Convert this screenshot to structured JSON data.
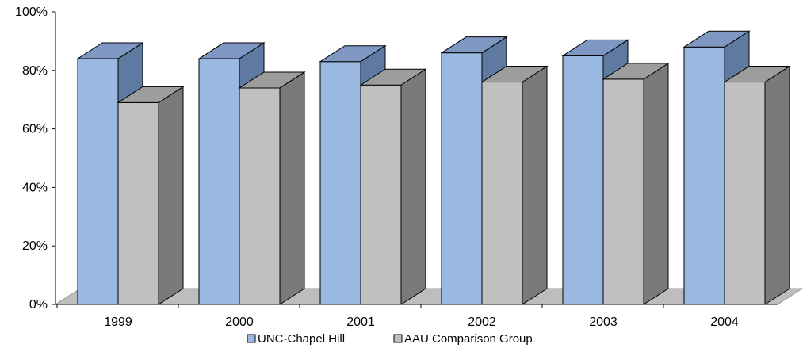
{
  "chart_data": {
    "type": "bar",
    "categories": [
      "1999",
      "2000",
      "2001",
      "2002",
      "2003",
      "2004"
    ],
    "series": [
      {
        "name": "UNC-Chapel Hill",
        "values": [
          84,
          84,
          83,
          86,
          85,
          88
        ],
        "color": "#9ab9e0",
        "side_color": "#5f7aa0",
        "top_color": "#7e98c3"
      },
      {
        "name": "AAU Comparison Group",
        "values": [
          69,
          74,
          75,
          76,
          77,
          76
        ],
        "color": "#c0c0c0",
        "side_color": "#7a7a7a",
        "top_color": "#9d9d9d"
      }
    ],
    "ylim": [
      0,
      100
    ],
    "y_ticks": [
      "0%",
      "20%",
      "40%",
      "60%",
      "80%",
      "100%"
    ],
    "grid": false,
    "legend_position": "bottom",
    "floor_color": "#bdbdbd"
  }
}
